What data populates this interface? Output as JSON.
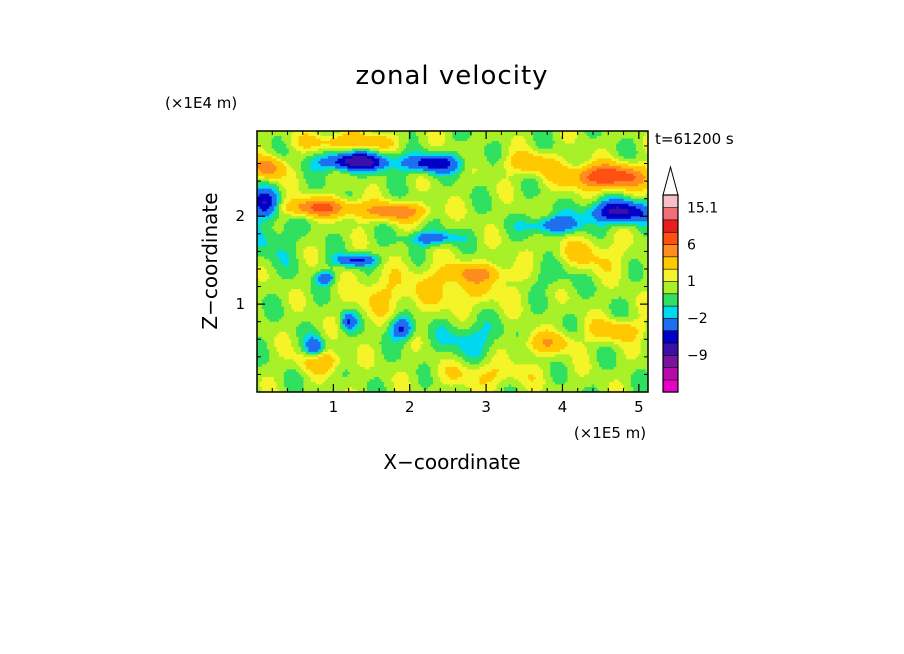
{
  "chart_data": {
    "type": "heatmap",
    "title": "zonal velocity",
    "xlabel": "X−coordinate",
    "ylabel": "Z−coordinate",
    "x_scale_label": "(×1E5 m)",
    "y_scale_label": "(×1E4 m)",
    "time_label": "t=61200 s",
    "xlim": [
      0,
      5.12
    ],
    "ylim": [
      0,
      2.97
    ],
    "x_ticks": [
      1,
      2,
      3,
      4,
      5
    ],
    "x_tick_labels": [
      "1",
      "2",
      "3",
      "4",
      "5"
    ],
    "y_ticks": [
      1,
      2
    ],
    "y_tick_labels": [
      "1",
      "2"
    ],
    "colorbar": {
      "levels": [
        -15,
        -12,
        -9,
        -6,
        -4,
        -2,
        -1,
        0,
        1,
        2,
        4,
        6,
        9,
        12,
        15.1
      ],
      "colors": [
        "#e800c8",
        "#b80aa8",
        "#7a14a0",
        "#3a10a8",
        "#0000c8",
        "#1e6ef0",
        "#00d8f0",
        "#30e060",
        "#a8f028",
        "#f4f428",
        "#ffc800",
        "#ff8c1e",
        "#ff5014",
        "#e81e1e",
        "#f06e78",
        "#f8c0c4"
      ],
      "labels": [
        "15.1",
        "6",
        "1",
        "−2",
        "−9"
      ],
      "label_values": [
        15.1,
        6,
        1,
        -2,
        -9
      ],
      "extend": "max"
    },
    "field_features": [
      {
        "kind": "negative core",
        "x": 1.3,
        "z": 2.62,
        "sx": 0.42,
        "sz": 0.1,
        "value": -8
      },
      {
        "kind": "negative core",
        "x": 2.3,
        "z": 2.6,
        "sx": 0.35,
        "sz": 0.1,
        "value": -6
      },
      {
        "kind": "negative core",
        "x": 0.1,
        "z": 2.15,
        "sx": 0.18,
        "sz": 0.15,
        "value": -6
      },
      {
        "kind": "negative core",
        "x": 4.75,
        "z": 2.05,
        "sx": 0.4,
        "sz": 0.12,
        "value": -7
      },
      {
        "kind": "negative core",
        "x": 3.9,
        "z": 1.9,
        "sx": 0.35,
        "sz": 0.1,
        "value": -4
      },
      {
        "kind": "negative core",
        "x": 2.3,
        "z": 1.75,
        "sx": 0.3,
        "sz": 0.08,
        "value": -4
      },
      {
        "kind": "negative core",
        "x": 1.3,
        "z": 1.5,
        "sx": 0.25,
        "sz": 0.07,
        "value": -5
      },
      {
        "kind": "negative core",
        "x": 0.9,
        "z": 1.3,
        "sx": 0.12,
        "sz": 0.07,
        "value": -4
      },
      {
        "kind": "negative core",
        "x": 1.9,
        "z": 0.72,
        "sx": 0.14,
        "sz": 0.12,
        "value": -5
      },
      {
        "kind": "negative core",
        "x": 1.2,
        "z": 0.8,
        "sx": 0.1,
        "sz": 0.1,
        "value": -4
      },
      {
        "kind": "negative core",
        "x": 0.75,
        "z": 0.5,
        "sx": 0.12,
        "sz": 0.12,
        "value": -4
      },
      {
        "kind": "weak negative",
        "x": 2.8,
        "z": 0.6,
        "sx": 0.4,
        "sz": 0.2,
        "value": -2
      },
      {
        "kind": "weak negative",
        "x": 0.2,
        "z": 1.75,
        "sx": 0.3,
        "sz": 0.3,
        "value": -1.5
      },
      {
        "kind": "weak negative",
        "x": 3.9,
        "z": 1.35,
        "sx": 0.3,
        "sz": 0.18,
        "value": -1.5
      },
      {
        "kind": "positive core",
        "x": 0.8,
        "z": 2.1,
        "sx": 0.45,
        "sz": 0.1,
        "value": 6
      },
      {
        "kind": "positive core",
        "x": 1.8,
        "z": 2.05,
        "sx": 0.45,
        "sz": 0.1,
        "value": 5
      },
      {
        "kind": "positive core",
        "x": 4.6,
        "z": 2.45,
        "sx": 0.5,
        "sz": 0.13,
        "value": 8
      },
      {
        "kind": "positive core",
        "x": 3.6,
        "z": 2.6,
        "sx": 0.35,
        "sz": 0.12,
        "value": 3
      },
      {
        "kind": "positive core",
        "x": 2.9,
        "z": 1.35,
        "sx": 0.4,
        "sz": 0.1,
        "value": 3
      },
      {
        "kind": "positive core",
        "x": 0.15,
        "z": 2.55,
        "sx": 0.2,
        "sz": 0.12,
        "value": 5
      },
      {
        "kind": "positive core",
        "x": 1.2,
        "z": 2.85,
        "sx": 0.6,
        "sz": 0.1,
        "value": 3
      },
      {
        "kind": "positive core",
        "x": 3.8,
        "z": 0.55,
        "sx": 0.35,
        "sz": 0.12,
        "value": 3
      },
      {
        "kind": "positive core",
        "x": 4.7,
        "z": 0.7,
        "sx": 0.35,
        "sz": 0.12,
        "value": 3
      },
      {
        "kind": "positive core",
        "x": 0.85,
        "z": 0.35,
        "sx": 0.3,
        "sz": 0.12,
        "value": 3
      },
      {
        "kind": "positive core",
        "x": 2.6,
        "z": 1.2,
        "sx": 0.7,
        "sz": 0.25,
        "value": 2
      },
      {
        "kind": "positive core",
        "x": 3.0,
        "z": 0.2,
        "sx": 0.6,
        "sz": 0.15,
        "value": 1.8
      },
      {
        "kind": "positive core",
        "x": 4.3,
        "z": 1.55,
        "sx": 0.5,
        "sz": 0.2,
        "value": 2
      },
      {
        "kind": "positive core",
        "x": 1.6,
        "z": 1.1,
        "sx": 0.4,
        "sz": 0.25,
        "value": 1.5
      }
    ],
    "background_value": 0.4
  }
}
